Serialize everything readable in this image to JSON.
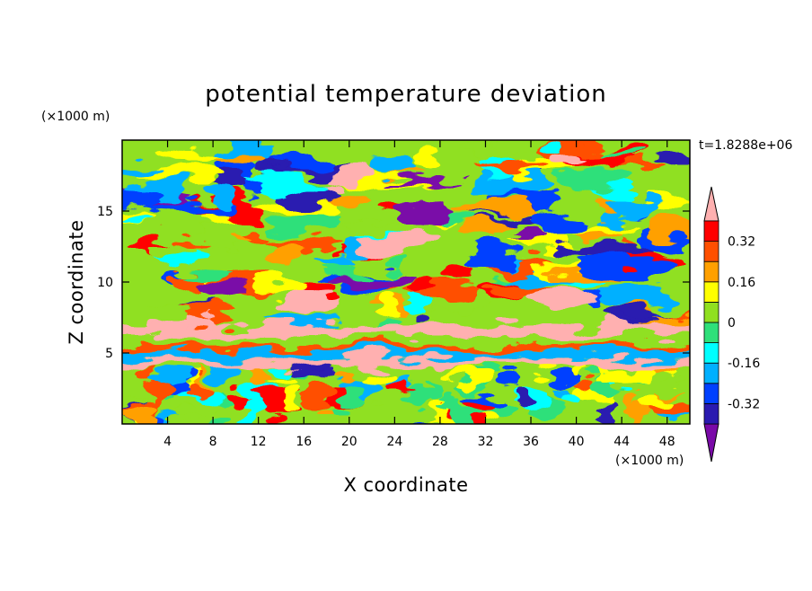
{
  "chart_data": {
    "type": "heatmap",
    "title": "potential temperature deviation",
    "xlabel": "X coordinate",
    "ylabel": "Z coordinate",
    "x_unit": "(×1000 m)",
    "y_unit": "(×1000 m)",
    "time_label": "t=1.8288e+06",
    "xlim": [
      0,
      50
    ],
    "ylim": [
      0,
      20
    ],
    "x_ticks": [
      4,
      8,
      12,
      16,
      20,
      24,
      28,
      32,
      36,
      40,
      44,
      48
    ],
    "y_ticks": [
      5,
      10,
      15
    ],
    "colorbar": {
      "levels": [
        -0.4,
        -0.32,
        -0.24,
        -0.16,
        -0.08,
        0,
        0.08,
        0.16,
        0.24,
        0.32,
        0.4
      ],
      "labels": [
        "0.32",
        "0.16",
        "0",
        "-0.16",
        "-0.32"
      ],
      "label_values": [
        0.32,
        0.16,
        0,
        -0.16,
        -0.32
      ],
      "colors": [
        "#7a0aa8",
        "#2a1ab0",
        "#0040ff",
        "#00b0ff",
        "#00ffff",
        "#2ee07a",
        "#90e020",
        "#ffff00",
        "#ffa000",
        "#ff5000",
        "#ff0000",
        "#ffb0b0"
      ]
    },
    "bands": [
      {
        "z": [
          0,
          4
        ],
        "pattern": "mixed-boundary-layer"
      },
      {
        "z": [
          4,
          4.6
        ],
        "level": 0.4
      },
      {
        "z": [
          4.6,
          5.2
        ],
        "level": -0.2
      },
      {
        "z": [
          5.2,
          5.6
        ],
        "level": 0.3
      },
      {
        "z": [
          5.6,
          6.2
        ],
        "level": 0.05
      },
      {
        "z": [
          6.2,
          7.0
        ],
        "level": 0.4
      },
      {
        "z": [
          7.0,
          20
        ],
        "pattern": "turbulent"
      }
    ]
  }
}
